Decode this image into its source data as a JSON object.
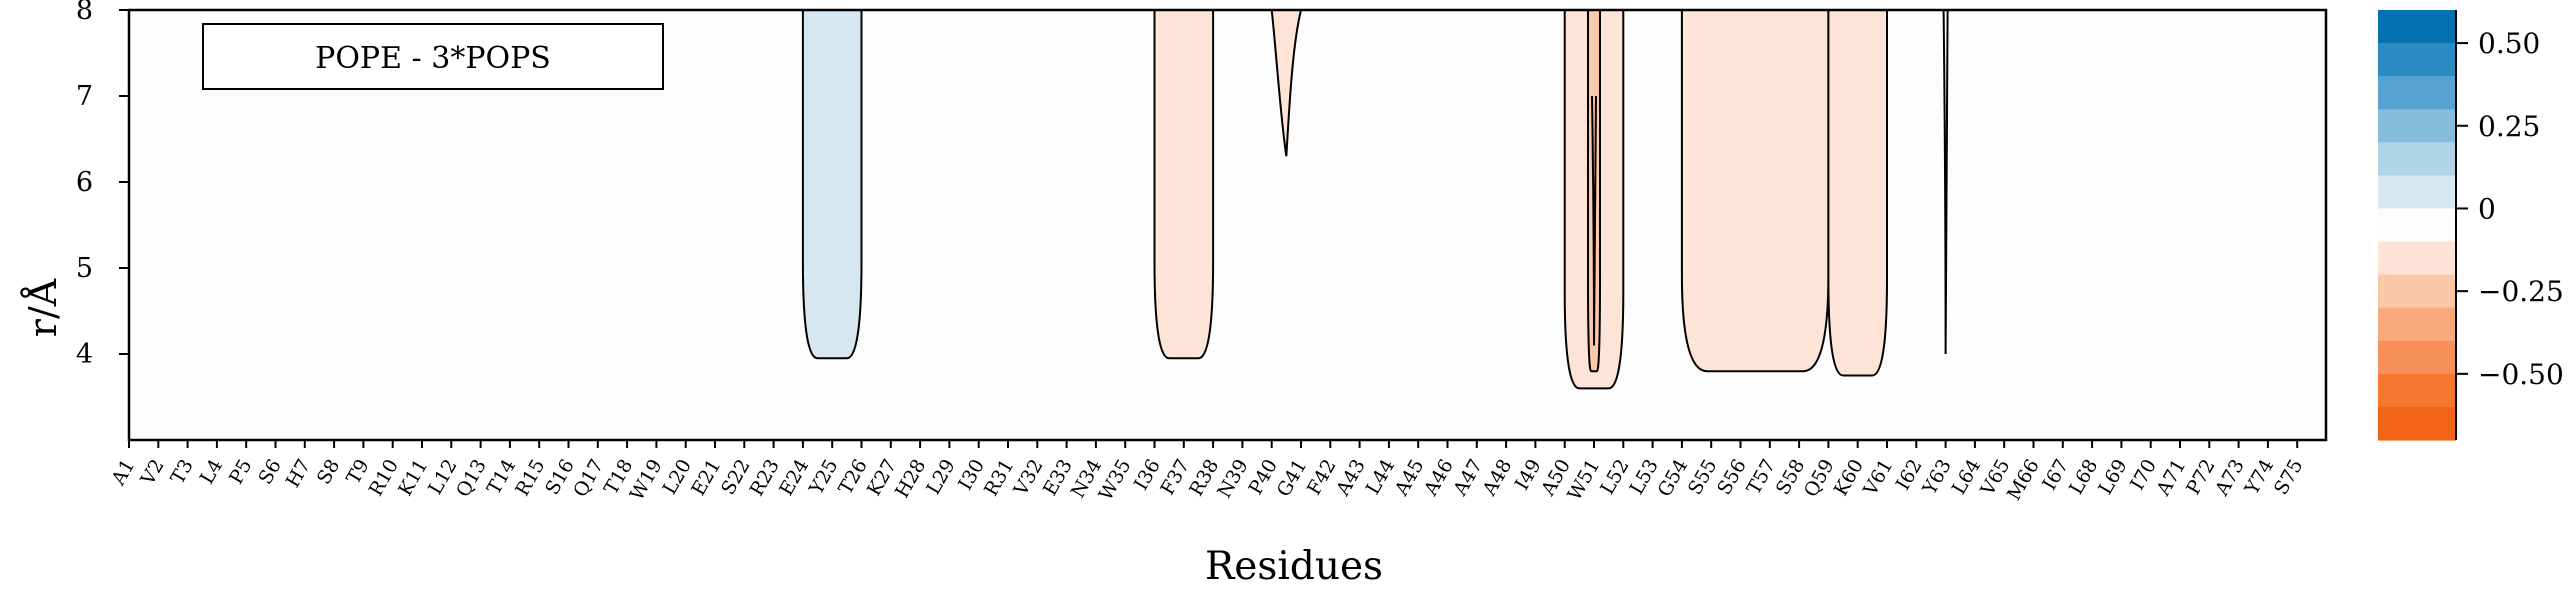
{
  "chart_data": {
    "type": "heatmap",
    "title": "",
    "annotation_box": "POPE - 3*POPS",
    "xlabel": "Residues",
    "ylabel": "r/Å",
    "ylim": [
      3,
      8
    ],
    "y_ticks": [
      "8",
      "7",
      "6",
      "5",
      "4"
    ],
    "y_tick_values": [
      8,
      7,
      6,
      5,
      4
    ],
    "categories": [
      "A1",
      "V2",
      "T3",
      "L4",
      "P5",
      "S6",
      "H7",
      "S8",
      "T9",
      "R10",
      "K11",
      "L12",
      "Q13",
      "T14",
      "R15",
      "S16",
      "Q17",
      "T18",
      "W19",
      "L20",
      "E21",
      "S22",
      "R23",
      "E24",
      "Y25",
      "T26",
      "K27",
      "H28",
      "L29",
      "I30",
      "R31",
      "V32",
      "E33",
      "N34",
      "W35",
      "I36",
      "F37",
      "R38",
      "N39",
      "P40",
      "G41",
      "F42",
      "A43",
      "L44",
      "A45",
      "A46",
      "A47",
      "A48",
      "I49",
      "A50",
      "W51",
      "L52",
      "L53",
      "G54",
      "S55",
      "S56",
      "T57",
      "S58",
      "Q59",
      "K60",
      "V61",
      "I62",
      "Y63",
      "L64",
      "V65",
      "M66",
      "I67",
      "L68",
      "L69",
      "I70",
      "A71",
      "P72",
      "A73",
      "Y74",
      "S75"
    ],
    "contour_regions": [
      {
        "residue_range": [
          "E24",
          "T26"
        ],
        "r_min": 3.95,
        "value": 0.05,
        "level": 1
      },
      {
        "residue_range": [
          "I36",
          "R38"
        ],
        "r_min": 3.95,
        "value": -0.05,
        "level": -1
      },
      {
        "residue_range": [
          "P40",
          "G41"
        ],
        "r_min": 6.3,
        "value": -0.05,
        "level": -1
      },
      {
        "residue_range": [
          "A50",
          "L52"
        ],
        "r_min": 3.6,
        "value": -0.05,
        "level": -1
      },
      {
        "residue_range": [
          "W51",
          "W51"
        ],
        "r_min": 3.8,
        "value": -0.15,
        "level": -2
      },
      {
        "residue_range": [
          "G54",
          "Q59"
        ],
        "r_min": 3.8,
        "value": -0.05,
        "level": -1
      },
      {
        "residue_range": [
          "Q59",
          "V61"
        ],
        "r_min": 3.75,
        "value": -0.05,
        "level": -1
      }
    ],
    "contour_lines": [
      {
        "residue": "W51",
        "r_range": [
          4.1,
          7.0
        ]
      },
      {
        "residue": "Y63",
        "r_range": [
          4.0,
          8.0
        ]
      }
    ],
    "colorbar": {
      "range": [
        -0.6,
        0.6
      ],
      "ticks": [
        0.5,
        0.25,
        0,
        -0.25,
        -0.5
      ],
      "tick_labels": [
        "0.50",
        "0.25",
        "0",
        "−0.25",
        "−0.50"
      ],
      "levels": [
        {
          "from": 0.5,
          "to": 0.6,
          "color": "#0571b0"
        },
        {
          "from": 0.4,
          "to": 0.5,
          "color": "#2b8cc4"
        },
        {
          "from": 0.3,
          "to": 0.4,
          "color": "#56a3d2"
        },
        {
          "from": 0.2,
          "to": 0.3,
          "color": "#86bddf"
        },
        {
          "from": 0.1,
          "to": 0.2,
          "color": "#b1d4e9"
        },
        {
          "from": 0.0,
          "to": 0.1,
          "color": "#d7e7f2"
        },
        {
          "from": -0.1,
          "to": 0.0,
          "color": "#fdfdfd"
        },
        {
          "from": -0.2,
          "to": -0.1,
          "color": "#fde2d5"
        },
        {
          "from": -0.3,
          "to": -0.2,
          "color": "#fbc8a8"
        },
        {
          "from": -0.4,
          "to": -0.3,
          "color": "#f9aa7c"
        },
        {
          "from": -0.5,
          "to": -0.4,
          "color": "#f8905a"
        },
        {
          "from": -0.6,
          "to": -0.5,
          "color": "#f5782e"
        },
        {
          "from": -0.7,
          "to": -0.6,
          "color": "#f26516"
        }
      ]
    },
    "colors": {
      "positive_1": "#d6e7f2",
      "negative_1": "#fde4d7",
      "negative_2": "#fbc9aa",
      "frame": "#000000",
      "background": "#fdfdfd"
    }
  }
}
